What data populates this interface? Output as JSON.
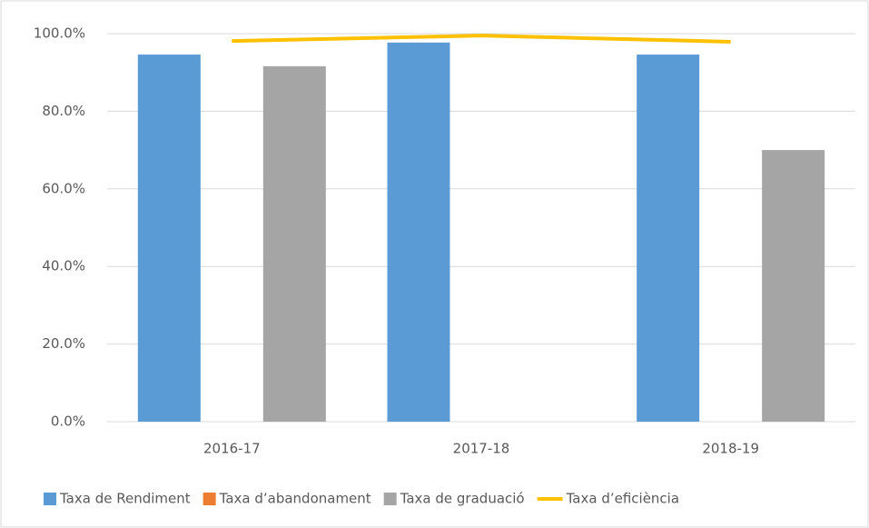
{
  "chart_data": {
    "type": "bar_line",
    "categories": [
      "2016-17",
      "2017-18",
      "2018-19"
    ],
    "series": [
      {
        "name": "Taxa de Rendiment",
        "color": "#5b9bd5",
        "kind": "bar",
        "values": [
          94.6,
          97.7,
          94.6
        ]
      },
      {
        "name": "Taxa d’abandonament",
        "color": "#ed7d31",
        "kind": "bar",
        "values": [
          0,
          0,
          0
        ]
      },
      {
        "name": "Taxa de graduació",
        "color": "#a5a5a5",
        "kind": "bar",
        "values": [
          91.6,
          null,
          70.0
        ]
      },
      {
        "name": "Taxa d’eficiència",
        "color": "#ffc000",
        "kind": "line",
        "values": [
          98.1,
          99.5,
          97.9
        ]
      }
    ],
    "ylim": [
      0,
      100
    ],
    "yticks": [
      {
        "value": 0,
        "label": "0.0%"
      },
      {
        "value": 20,
        "label": "20.0%"
      },
      {
        "value": 40,
        "label": "40.0%"
      },
      {
        "value": 60,
        "label": "60.0%"
      },
      {
        "value": 80,
        "label": "80.0%"
      },
      {
        "value": 100,
        "label": "100.0%"
      }
    ],
    "grid": true,
    "legend": "bottom"
  }
}
